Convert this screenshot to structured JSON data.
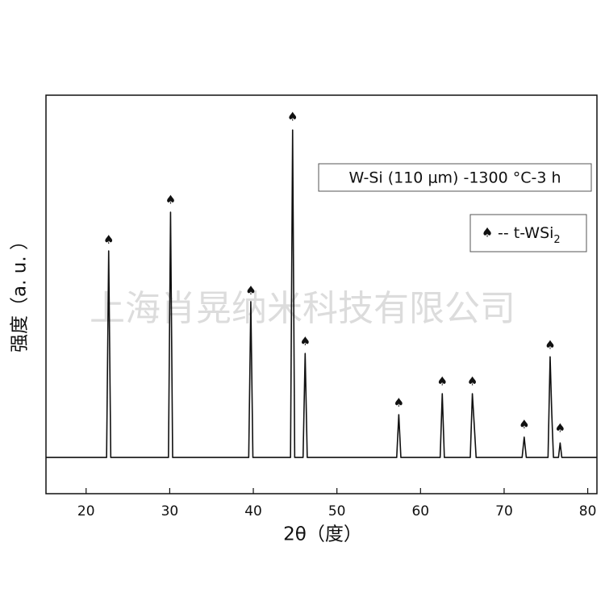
{
  "chart_data": {
    "type": "line",
    "x_label": "2θ（度）",
    "y_label": "强度（a. u. ）",
    "annotation": "W-Si (110 μm) -1300 °C-3 h",
    "watermark": "上海肖晃纳米科技有限公司",
    "legend": {
      "symbol": "♠",
      "text": "-- t-WSi",
      "subscript": "2"
    },
    "color": "#111111",
    "x": [
      15.2,
      22.45,
      22.7,
      22.95,
      29.85,
      30.1,
      30.35,
      39.45,
      39.7,
      39.95,
      44.45,
      44.7,
      44.95,
      45.95,
      46.2,
      46.45,
      57.15,
      57.4,
      57.65,
      62.35,
      62.6,
      62.85,
      65.95,
      66.2,
      66.45,
      66.65,
      72.15,
      72.4,
      72.65,
      75.25,
      75.5,
      75.7,
      75.9,
      76.5,
      76.7,
      76.9,
      81.1
    ],
    "values": [
      0,
      0,
      57,
      0,
      0,
      67.7,
      0,
      0,
      43,
      0,
      0,
      90.4,
      0,
      0,
      28.7,
      0,
      0,
      11.8,
      0,
      0,
      17.6,
      0,
      0,
      17.6,
      8,
      0,
      0,
      5.6,
      0,
      0,
      27.8,
      12,
      0,
      0,
      4,
      0,
      0
    ],
    "markers": {
      "x": [
        22.7,
        30.1,
        39.7,
        44.7,
        46.2,
        57.4,
        62.6,
        66.2,
        72.4,
        75.5,
        76.7
      ],
      "values": [
        60,
        71,
        46,
        94,
        32,
        15,
        21,
        21,
        9,
        31,
        8
      ]
    },
    "xlim": [
      15.2,
      81.1
    ],
    "xticks": [
      20,
      30,
      40,
      50,
      60,
      70,
      80
    ],
    "ylim": [
      -10,
      100
    ]
  }
}
